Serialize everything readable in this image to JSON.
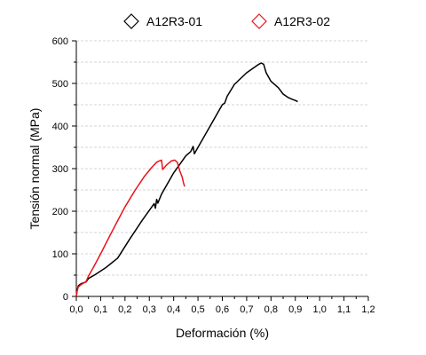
{
  "chart_data": {
    "type": "line",
    "xlabel": "Deformación (%)",
    "ylabel": "Tensión normal (MPa)",
    "xlim": [
      0,
      1.2
    ],
    "ylim": [
      0,
      600
    ],
    "x_ticks": [
      "0,0",
      "0,1",
      "0,2",
      "0,3",
      "0,4",
      "0,5",
      "0,6",
      "0,7",
      "0,8",
      "0,9",
      "1,0",
      "1,1",
      "1,2"
    ],
    "y_ticks": [
      "0",
      "100",
      "200",
      "300",
      "400",
      "500",
      "600"
    ],
    "grid": "horizontal dashed",
    "legend_position": "top",
    "series": [
      {
        "name": "A12R3-01",
        "color": "#000000",
        "marker": "diamond",
        "points": [
          [
            0.0,
            0
          ],
          [
            0.003,
            12
          ],
          [
            0.008,
            25
          ],
          [
            0.02,
            30
          ],
          [
            0.04,
            34
          ],
          [
            0.05,
            42
          ],
          [
            0.08,
            52
          ],
          [
            0.12,
            67
          ],
          [
            0.17,
            90
          ],
          [
            0.22,
            135
          ],
          [
            0.27,
            178
          ],
          [
            0.31,
            210
          ],
          [
            0.32,
            218
          ],
          [
            0.325,
            207
          ],
          [
            0.33,
            228
          ],
          [
            0.335,
            219
          ],
          [
            0.35,
            240
          ],
          [
            0.4,
            290
          ],
          [
            0.45,
            330
          ],
          [
            0.47,
            340
          ],
          [
            0.48,
            352
          ],
          [
            0.485,
            335
          ],
          [
            0.5,
            350
          ],
          [
            0.55,
            400
          ],
          [
            0.6,
            450
          ],
          [
            0.61,
            454
          ],
          [
            0.62,
            470
          ],
          [
            0.65,
            498
          ],
          [
            0.7,
            525
          ],
          [
            0.75,
            545
          ],
          [
            0.76,
            548
          ],
          [
            0.77,
            545
          ],
          [
            0.78,
            525
          ],
          [
            0.8,
            505
          ],
          [
            0.83,
            490
          ],
          [
            0.85,
            475
          ],
          [
            0.87,
            467
          ],
          [
            0.89,
            462
          ],
          [
            0.9,
            460
          ],
          [
            0.91,
            457
          ]
        ]
      },
      {
        "name": "A12R3-02",
        "color": "#e8141a",
        "marker": "diamond",
        "points": [
          [
            0.0,
            0
          ],
          [
            0.003,
            12
          ],
          [
            0.008,
            22
          ],
          [
            0.02,
            28
          ],
          [
            0.04,
            35
          ],
          [
            0.05,
            48
          ],
          [
            0.07,
            68
          ],
          [
            0.1,
            100
          ],
          [
            0.14,
            145
          ],
          [
            0.17,
            178
          ],
          [
            0.2,
            210
          ],
          [
            0.24,
            248
          ],
          [
            0.28,
            282
          ],
          [
            0.31,
            303
          ],
          [
            0.33,
            315
          ],
          [
            0.34,
            318
          ],
          [
            0.35,
            320
          ],
          [
            0.355,
            298
          ],
          [
            0.37,
            308
          ],
          [
            0.39,
            318
          ],
          [
            0.405,
            320
          ],
          [
            0.415,
            315
          ],
          [
            0.425,
            295
          ],
          [
            0.435,
            280
          ],
          [
            0.44,
            268
          ],
          [
            0.445,
            258
          ]
        ]
      }
    ]
  }
}
